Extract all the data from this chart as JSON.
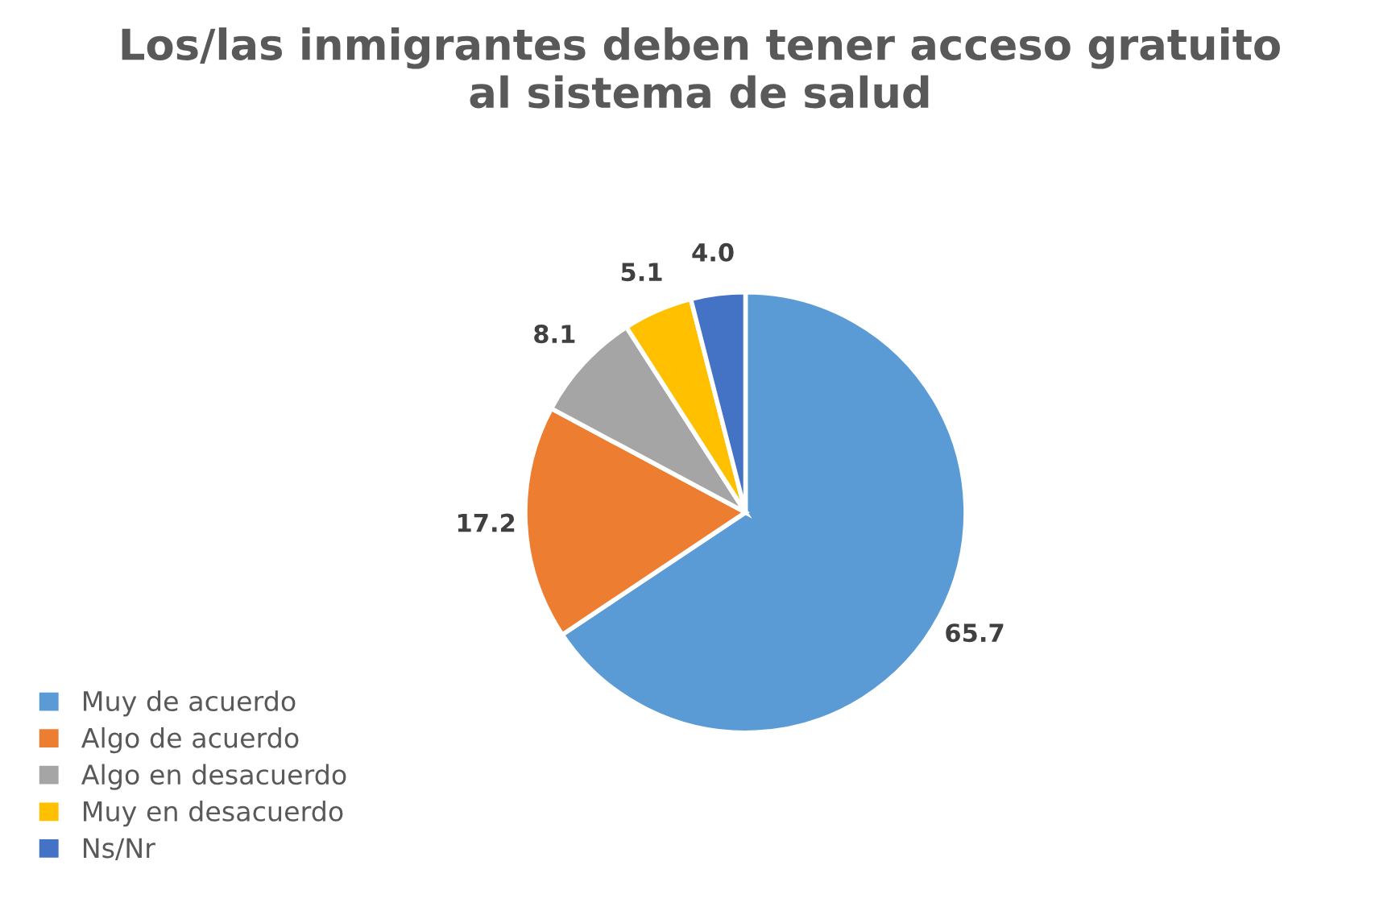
{
  "chart_data": {
    "type": "pie",
    "title": "Los/las inmigrantes deben tener acceso gratuito\nal sistema de salud",
    "categories": [
      "Muy de acuerdo",
      "Algo de acuerdo",
      "Algo en desacuerdo",
      "Muy en desacuerdo",
      "Ns/Nr"
    ],
    "values": [
      65.7,
      17.2,
      8.1,
      5.1,
      4.0
    ],
    "colors": [
      "#5b9bd5",
      "#ed7d31",
      "#a5a5a5",
      "#ffc000",
      "#4472c4"
    ],
    "value_labels": [
      "65.7",
      "17.2",
      "8.1",
      "5.1",
      "4.0"
    ],
    "legend": "bottom left"
  }
}
